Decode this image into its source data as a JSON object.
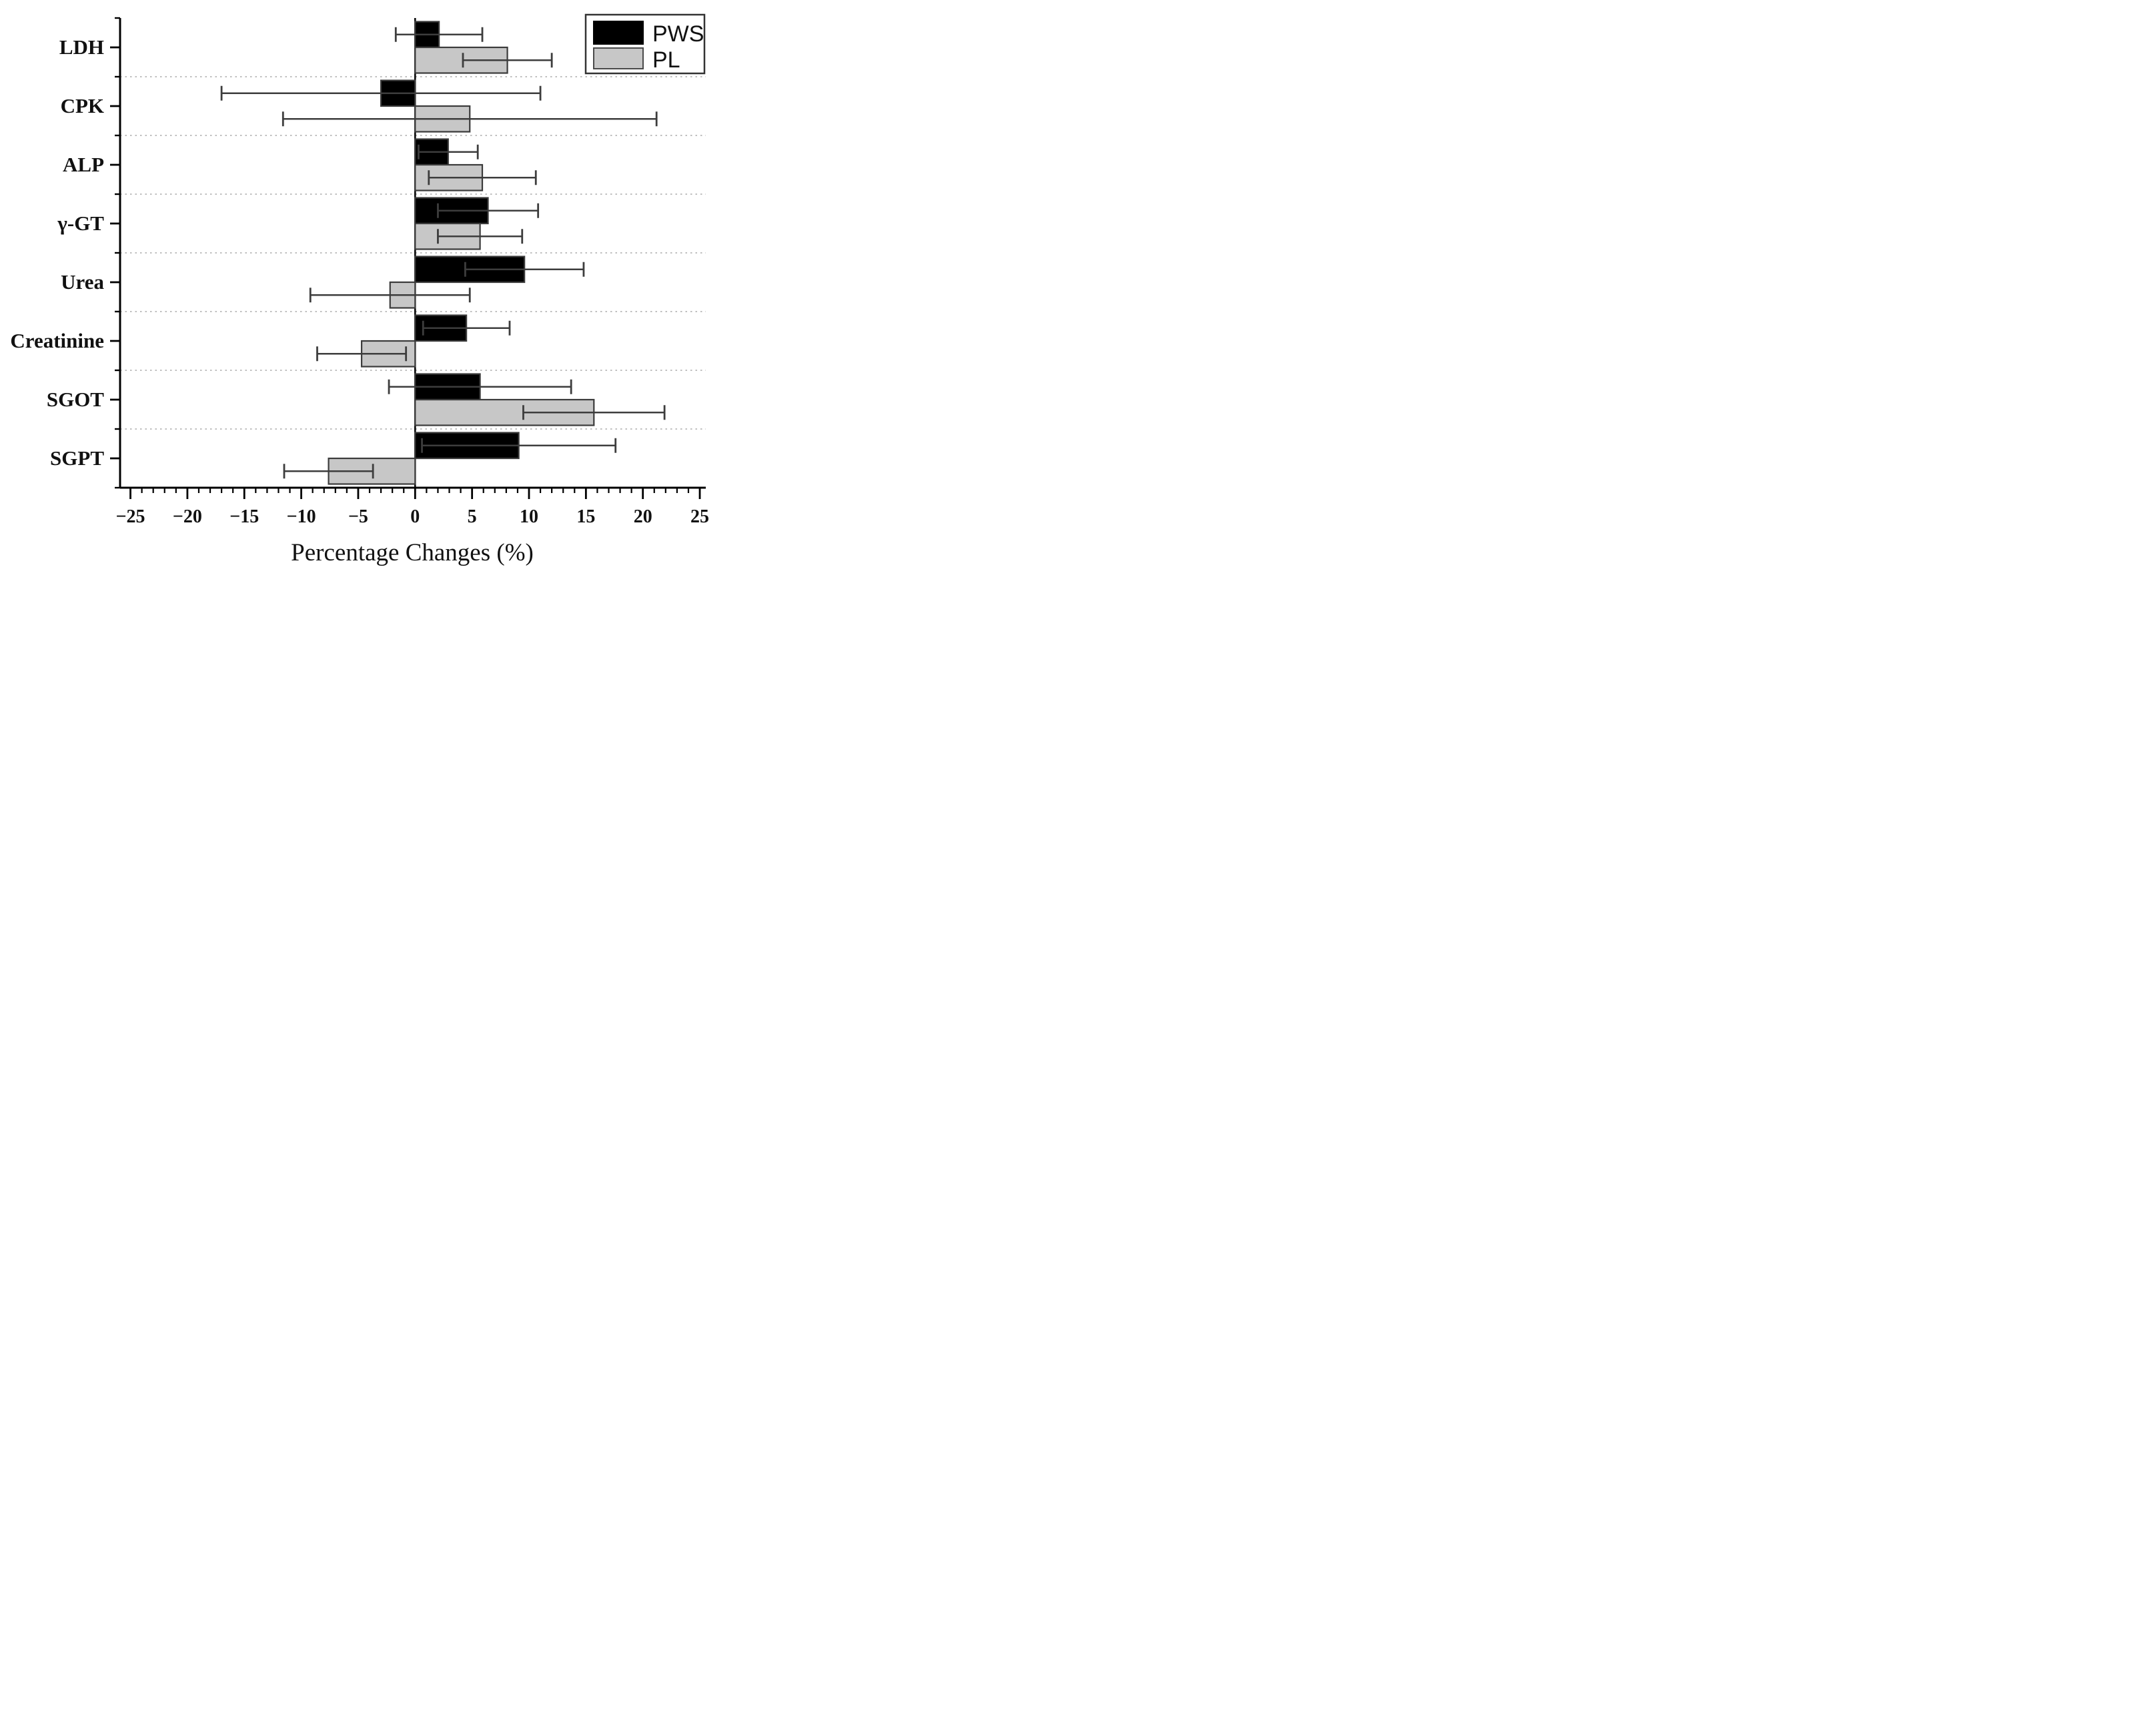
{
  "chart_data": {
    "type": "bar",
    "orientation": "horizontal",
    "title": "",
    "xlabel": "Percentage Changes (%)",
    "ylabel": "",
    "categories": [
      "LDH",
      "CPK",
      "ALP",
      "γ-GT",
      "Urea",
      "Creatinine",
      "SGOT",
      "SGPT"
    ],
    "series": [
      {
        "name": "PWS",
        "color": "#000000",
        "values": [
          2.1,
          -3.0,
          2.9,
          6.4,
          9.6,
          4.5,
          5.7,
          9.1
        ],
        "errors": [
          3.8,
          14.0,
          2.6,
          4.4,
          5.2,
          3.8,
          8.0,
          8.5
        ]
      },
      {
        "name": "PL",
        "color": "#c7c7c7",
        "values": [
          8.1,
          4.8,
          5.9,
          5.7,
          -2.2,
          -4.7,
          15.7,
          -7.6
        ],
        "errors": [
          3.9,
          16.4,
          4.7,
          3.7,
          7.0,
          3.9,
          6.2,
          3.9
        ]
      }
    ],
    "xlim": [
      -26,
      26
    ],
    "xticks": [
      -25,
      -20,
      -15,
      -10,
      -5,
      0,
      5,
      10,
      15,
      20,
      25
    ],
    "xtick_labels": [
      "−25",
      "−20",
      "−15",
      "−10",
      "−5",
      "0",
      "5",
      "10",
      "15",
      "20",
      "25"
    ],
    "minor_tick_step": 1,
    "error_bars": "both directions with caps",
    "zero_line": true,
    "grid": "dotted horizontal separators between category groups",
    "legend": {
      "position": "top-right",
      "entries": [
        "PWS",
        "PL"
      ]
    }
  },
  "styles": {
    "bar_black_fill": "#000000",
    "bar_gray_fill": "#c7c7c7",
    "bar_stroke": "#3b3b3b",
    "error_color": "#3d3d3d",
    "separator_color": "#bfbfbf",
    "axis_color": "#000000",
    "background": "#ffffff"
  }
}
